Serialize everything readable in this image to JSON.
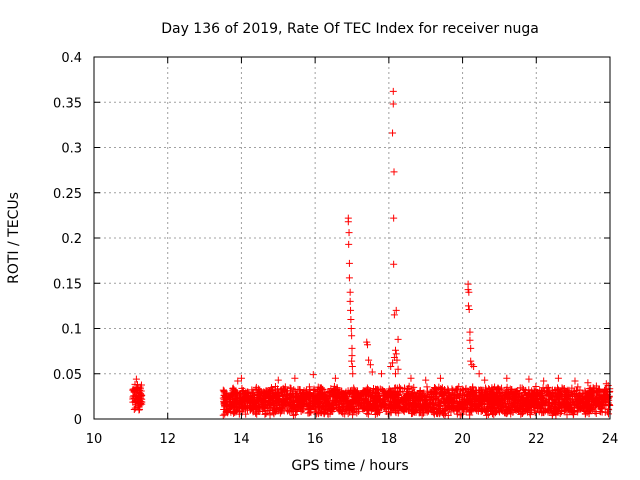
{
  "colors": {
    "marker": "#ff0000",
    "grid": "#a0a0a0",
    "frame": "#000000"
  },
  "chart_data": {
    "type": "scatter",
    "title": "Day 136 of 2019, Rate Of TEC Index for receiver nuga",
    "xlabel": "GPS time / hours",
    "ylabel": "ROTI / TECUs",
    "xlim": [
      10,
      24
    ],
    "ylim": [
      0,
      0.4
    ],
    "xticks": [
      10,
      12,
      14,
      16,
      18,
      20,
      22,
      24
    ],
    "xtick_labels": [
      "10",
      "12",
      "14",
      "16",
      "18",
      "20",
      "22",
      "24"
    ],
    "yticks": [
      0,
      0.05,
      0.1,
      0.15,
      0.2,
      0.25,
      0.3,
      0.35,
      0.4
    ],
    "ytick_labels": [
      "0",
      "0.05",
      "0.1",
      "0.15",
      "0.2",
      "0.25",
      "0.3",
      "0.35",
      "0.4"
    ],
    "grid": true,
    "marker": "+",
    "series": [
      {
        "name": "ROTI",
        "segments": [
          {
            "start": 11.05,
            "end": 11.3,
            "base": 0.025,
            "spread": 0.022
          },
          {
            "start": 13.5,
            "end": 24.0,
            "base": 0.02,
            "spread": 0.024
          }
        ],
        "points": [
          [
            11.15,
            0.044
          ],
          [
            11.18,
            0.038
          ],
          [
            11.2,
            0.034
          ],
          [
            11.12,
            0.012
          ],
          [
            11.22,
            0.01
          ],
          [
            16.9,
            0.222
          ],
          [
            16.9,
            0.218
          ],
          [
            16.92,
            0.206
          ],
          [
            16.91,
            0.193
          ],
          [
            16.93,
            0.172
          ],
          [
            16.93,
            0.156
          ],
          [
            16.95,
            0.14
          ],
          [
            16.95,
            0.13
          ],
          [
            16.96,
            0.12
          ],
          [
            16.97,
            0.11
          ],
          [
            16.98,
            0.1
          ],
          [
            16.99,
            0.092
          ],
          [
            17.0,
            0.078
          ],
          [
            17.0,
            0.07
          ],
          [
            16.99,
            0.064
          ],
          [
            17.01,
            0.058
          ],
          [
            17.02,
            0.05
          ],
          [
            17.4,
            0.085
          ],
          [
            17.42,
            0.082
          ],
          [
            17.45,
            0.065
          ],
          [
            17.5,
            0.06
          ],
          [
            17.55,
            0.052
          ],
          [
            18.12,
            0.362
          ],
          [
            18.12,
            0.348
          ],
          [
            18.1,
            0.316
          ],
          [
            18.14,
            0.273
          ],
          [
            18.13,
            0.222
          ],
          [
            18.13,
            0.171
          ],
          [
            18.2,
            0.12
          ],
          [
            18.15,
            0.115
          ],
          [
            18.25,
            0.088
          ],
          [
            18.18,
            0.076
          ],
          [
            18.2,
            0.072
          ],
          [
            18.15,
            0.068
          ],
          [
            18.22,
            0.065
          ],
          [
            18.1,
            0.062
          ],
          [
            18.05,
            0.058
          ],
          [
            18.25,
            0.055
          ],
          [
            18.18,
            0.05
          ],
          [
            20.15,
            0.149
          ],
          [
            20.15,
            0.143
          ],
          [
            20.17,
            0.14
          ],
          [
            20.16,
            0.125
          ],
          [
            20.18,
            0.121
          ],
          [
            20.2,
            0.096
          ],
          [
            20.2,
            0.087
          ],
          [
            20.22,
            0.078
          ],
          [
            20.22,
            0.064
          ],
          [
            20.25,
            0.06
          ],
          [
            20.3,
            0.058
          ],
          [
            20.45,
            0.05
          ],
          [
            13.9,
            0.042
          ],
          [
            14.0,
            0.045
          ],
          [
            15.0,
            0.043
          ],
          [
            15.45,
            0.045
          ],
          [
            15.95,
            0.049
          ],
          [
            16.55,
            0.045
          ],
          [
            17.8,
            0.05
          ],
          [
            18.6,
            0.045
          ],
          [
            19.0,
            0.043
          ],
          [
            19.4,
            0.045
          ],
          [
            20.6,
            0.043
          ],
          [
            21.2,
            0.045
          ],
          [
            21.8,
            0.044
          ],
          [
            22.2,
            0.042
          ],
          [
            22.6,
            0.045
          ],
          [
            23.05,
            0.042
          ],
          [
            23.4,
            0.04
          ],
          [
            23.9,
            0.039
          ],
          [
            23.95,
            0.037
          ]
        ]
      }
    ]
  }
}
